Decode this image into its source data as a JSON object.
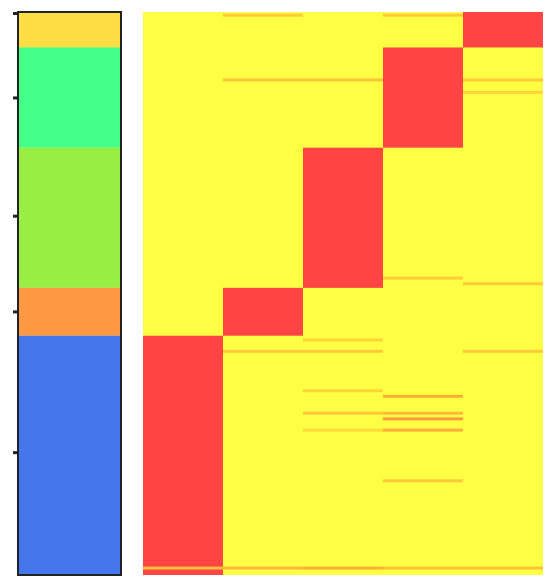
{
  "chart_data": [
    {
      "type": "bar",
      "orientation": "vertical-stacked",
      "title": "",
      "xlabel": "",
      "ylabel": "",
      "legend": "none",
      "grid": false,
      "segments": [
        {
          "value": 0.063,
          "color": "#ffdd44"
        },
        {
          "value": 0.178,
          "color": "#44ff88"
        },
        {
          "value": 0.249,
          "color": "#99ee44"
        },
        {
          "value": 0.085,
          "color": "#ff9944"
        },
        {
          "value": 0.425,
          "color": "#4477ee"
        }
      ],
      "axis_ticks": [
        0.0,
        0.15,
        0.36,
        0.53,
        0.78
      ],
      "tick_labels": []
    },
    {
      "type": "heatmap",
      "title": "",
      "xlabel": "",
      "ylabel": "",
      "legend": "none",
      "grid": false,
      "colorscale": {
        "low": "#ffff44",
        "mid": "#ffb833",
        "high": "#ff4444"
      },
      "columns": 5,
      "row_groups": [
        {
          "fraction": 0.063,
          "hot_column": 4
        },
        {
          "fraction": 0.178,
          "hot_column": 3
        },
        {
          "fraction": 0.249,
          "hot_column": 2
        },
        {
          "fraction": 0.085,
          "hot_column": 1
        },
        {
          "fraction": 0.425,
          "hot_column": 0
        }
      ],
      "stripes": [
        {
          "column": 1,
          "pos": 0.003,
          "value": 0.45
        },
        {
          "column": 3,
          "pos": 0.003,
          "value": 0.45
        },
        {
          "column": 1,
          "pos": 0.118,
          "value": 0.5
        },
        {
          "column": 2,
          "pos": 0.118,
          "value": 0.5
        },
        {
          "column": 4,
          "pos": 0.118,
          "value": 0.45
        },
        {
          "column": 4,
          "pos": 0.14,
          "value": 0.35
        },
        {
          "column": 3,
          "pos": 0.47,
          "value": 0.4
        },
        {
          "column": 4,
          "pos": 0.48,
          "value": 0.45
        },
        {
          "column": 2,
          "pos": 0.58,
          "value": 0.35
        },
        {
          "column": 1,
          "pos": 0.6,
          "value": 0.45
        },
        {
          "column": 2,
          "pos": 0.6,
          "value": 0.45
        },
        {
          "column": 4,
          "pos": 0.6,
          "value": 0.45
        },
        {
          "column": 2,
          "pos": 0.67,
          "value": 0.35
        },
        {
          "column": 3,
          "pos": 0.68,
          "value": 0.6
        },
        {
          "column": 2,
          "pos": 0.71,
          "value": 0.45
        },
        {
          "column": 3,
          "pos": 0.71,
          "value": 0.55
        },
        {
          "column": 3,
          "pos": 0.72,
          "value": 0.7
        },
        {
          "column": 3,
          "pos": 0.74,
          "value": 0.6
        },
        {
          "column": 2,
          "pos": 0.74,
          "value": 0.3
        },
        {
          "column": 3,
          "pos": 0.83,
          "value": 0.45
        },
        {
          "column": 1,
          "pos": 0.985,
          "value": 0.55
        },
        {
          "column": 2,
          "pos": 0.985,
          "value": 0.6
        },
        {
          "column": 3,
          "pos": 0.985,
          "value": 0.5
        },
        {
          "column": 4,
          "pos": 0.985,
          "value": 0.5
        },
        {
          "column": 0,
          "pos": 0.985,
          "value": 0.3
        }
      ]
    }
  ]
}
